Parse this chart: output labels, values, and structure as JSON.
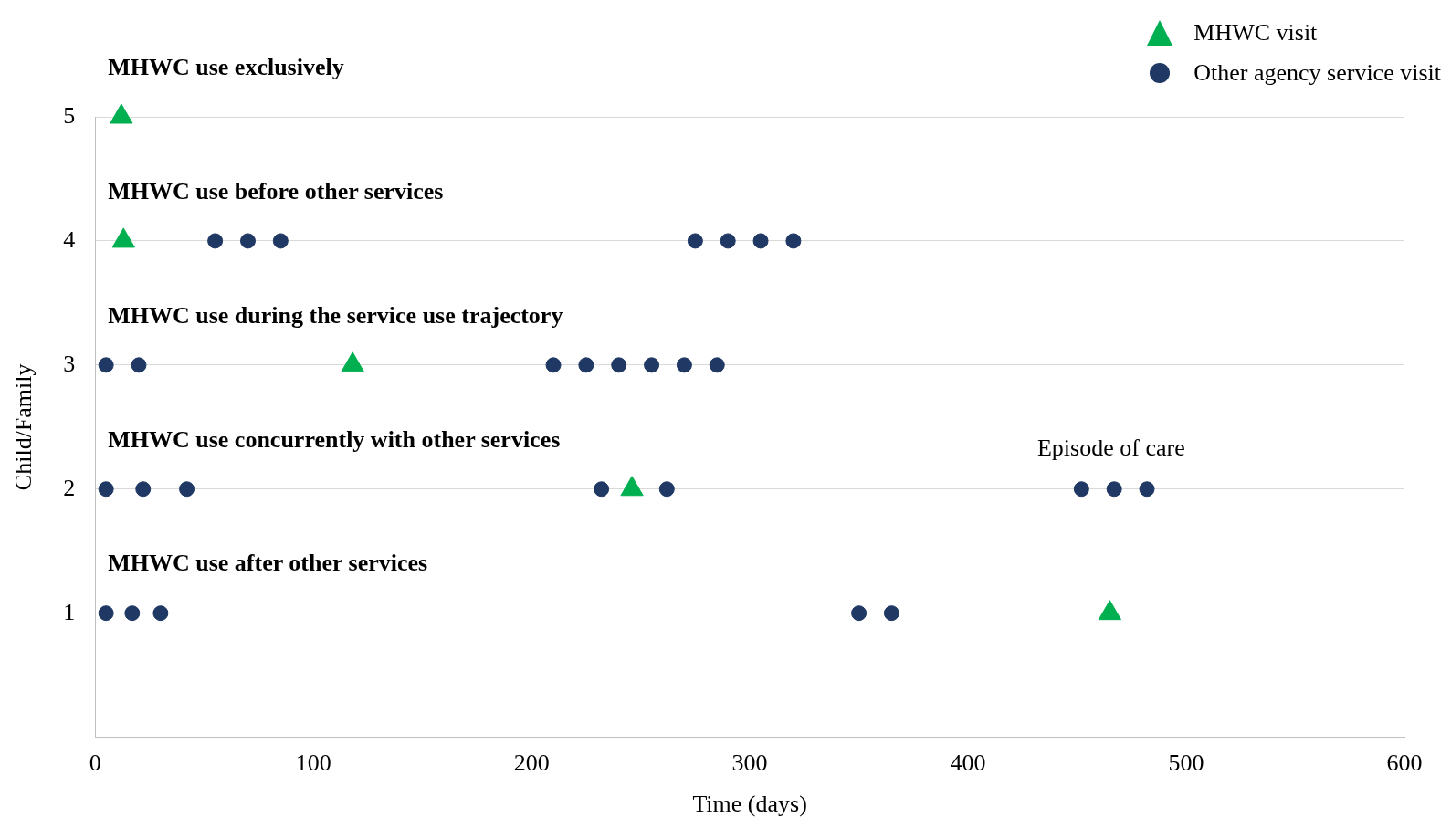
{
  "chart_data": {
    "type": "scatter",
    "xlabel": "Time (days)",
    "ylabel": "Child/Family",
    "xlim": [
      0,
      600
    ],
    "xticks": [
      0,
      100,
      200,
      300,
      400,
      500,
      600
    ],
    "ylim": [
      0,
      5
    ],
    "yticks": [
      1,
      2,
      3,
      4,
      5
    ],
    "grid": "y",
    "legend": "top right",
    "series": [
      {
        "name": "MHWC visit",
        "color": "#00b050",
        "marker": "triangle",
        "x": [
          12,
          13,
          118,
          246,
          465
        ],
        "values": [
          5,
          4,
          3,
          2,
          1
        ]
      },
      {
        "name": "Other agency service visit",
        "color": "#1f3864",
        "marker": "circle",
        "x": [
          55,
          70,
          85,
          275,
          290,
          305,
          320,
          5,
          20,
          210,
          225,
          240,
          255,
          270,
          285,
          5,
          22,
          42,
          232,
          262,
          452,
          467,
          482,
          5,
          17,
          30,
          350,
          365
        ],
        "values": [
          4,
          4,
          4,
          4,
          4,
          4,
          4,
          3,
          3,
          3,
          3,
          3,
          3,
          3,
          3,
          2,
          2,
          2,
          2,
          2,
          2,
          2,
          2,
          1,
          1,
          1,
          1,
          1
        ]
      }
    ],
    "annotations": [
      "MHWC use exclusively",
      "MHWC use before other services",
      "MHWC use during the service use trajectory",
      "MHWC use concurrently with other services",
      "MHWC use after other services",
      "Episode of care"
    ]
  }
}
